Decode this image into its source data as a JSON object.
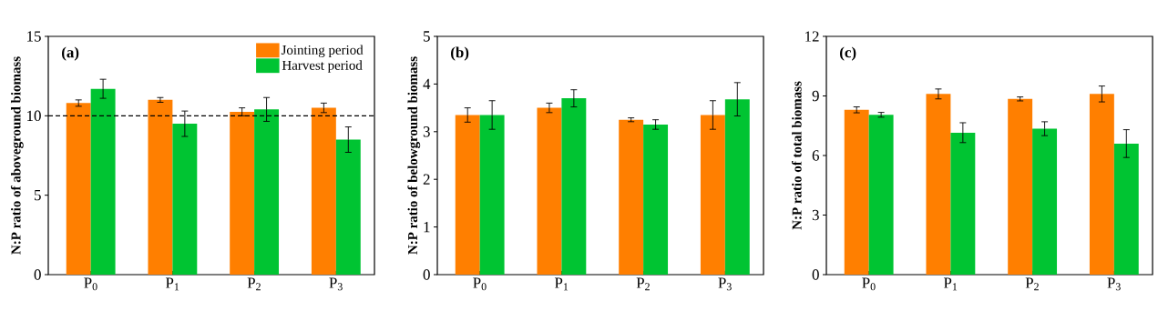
{
  "chart_data": [
    {
      "type": "bar",
      "ylabel": "N:P ratio of aboveground biomass",
      "annotations": [
        "(a)"
      ],
      "categories": [
        "P$_{0}$",
        "P$_{1}$",
        "P$_{2}$",
        "P$_{3}$"
      ],
      "ylim": [
        0,
        15
      ],
      "yticks": [
        0,
        5,
        10,
        15
      ],
      "legend": "top right",
      "series": [
        {
          "name": "Jointing period",
          "color": "#ff7f00",
          "values": [
            10.8,
            11.0,
            10.25,
            10.5
          ],
          "errors": [
            0.2,
            0.15,
            0.25,
            0.3
          ]
        },
        {
          "name": "Harvest period",
          "color": "#00c432",
          "values": [
            11.7,
            9.5,
            10.4,
            8.5
          ],
          "errors": [
            0.6,
            0.8,
            0.75,
            0.8
          ]
        }
      ],
      "ref_lines": [
        {
          "axis": "y",
          "value": 10,
          "line_style": "dashed",
          "color": "#000000"
        }
      ]
    },
    {
      "type": "bar",
      "ylabel": "N:P ratio of belowground biomass",
      "annotations": [
        "(b)"
      ],
      "categories": [
        "P$_{0}$",
        "P$_{1}$",
        "P$_{2}$",
        "P$_{3}$"
      ],
      "ylim": [
        0,
        5
      ],
      "yticks": [
        0,
        1,
        2,
        3,
        4,
        5
      ],
      "series": [
        {
          "color": "#ff7f00",
          "values": [
            3.35,
            3.5,
            3.25,
            3.35
          ],
          "errors": [
            0.15,
            0.1,
            0.04,
            0.3
          ]
        },
        {
          "color": "#00c432",
          "values": [
            3.35,
            3.7,
            3.15,
            3.68
          ],
          "errors": [
            0.3,
            0.18,
            0.1,
            0.35
          ]
        }
      ]
    },
    {
      "type": "bar",
      "ylabel": "N:P ratio of total biomass",
      "annotations": [
        "(c)"
      ],
      "categories": [
        "P$_{0}$",
        "P$_{1}$",
        "P$_{2}$",
        "P$_{3}$"
      ],
      "ylim": [
        0,
        12
      ],
      "yticks": [
        0,
        3,
        6,
        9,
        12
      ],
      "series": [
        {
          "color": "#ff7f00",
          "values": [
            8.3,
            9.1,
            8.85,
            9.1
          ],
          "errors": [
            0.15,
            0.25,
            0.1,
            0.4
          ]
        },
        {
          "color": "#00c432",
          "values": [
            8.05,
            7.15,
            7.35,
            6.6
          ],
          "errors": [
            0.12,
            0.5,
            0.35,
            0.7
          ]
        }
      ]
    }
  ]
}
